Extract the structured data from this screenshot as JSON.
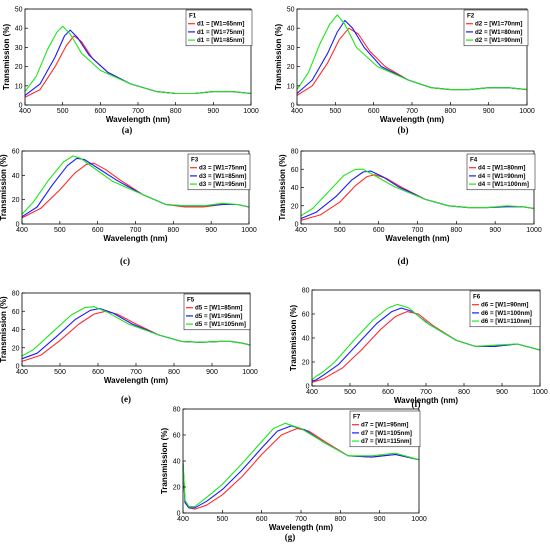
{
  "colors": {
    "red": "#ff2b2b",
    "green": "#1ee61e",
    "blue": "#1a1aff",
    "black": "#000000"
  },
  "chart_data": [
    {
      "type": "line",
      "panel": "(a)",
      "xlabel": "Wavelength (nm)",
      "ylabel": "Transmission (%)",
      "xlim": [
        400,
        1000
      ],
      "ylim": [
        0,
        50
      ],
      "xticks": [
        400,
        500,
        600,
        700,
        800,
        900,
        1000
      ],
      "yticks": [
        0,
        10,
        20,
        30,
        40,
        50
      ],
      "legend_title": "F1",
      "legend_position": "top-right",
      "series": [
        {
          "name": "d1 = [W1=65nm]",
          "color": "#ff2b2b",
          "x": [
            400,
            440,
            480,
            510,
            530,
            550,
            580,
            620,
            680,
            750,
            800,
            850,
            900,
            950,
            1000
          ],
          "y": [
            4,
            8,
            20,
            31,
            36,
            33,
            24,
            17,
            11,
            7,
            6,
            6,
            7,
            7,
            6
          ]
        },
        {
          "name": "d1 = [W1=75nm]",
          "color": "#1a1aff",
          "x": [
            400,
            440,
            480,
            505,
            520,
            540,
            570,
            620,
            680,
            750,
            800,
            850,
            900,
            950,
            1000
          ],
          "y": [
            5,
            11,
            25,
            36,
            39,
            35,
            26,
            17,
            11,
            7,
            6,
            6,
            7,
            7,
            6
          ]
        },
        {
          "name": "d1 = [W1=85nm]",
          "color": "#1ee61e",
          "x": [
            400,
            430,
            460,
            485,
            500,
            520,
            550,
            600,
            680,
            750,
            800,
            850,
            900,
            950,
            1000
          ],
          "y": [
            7,
            15,
            29,
            38,
            41,
            37,
            27,
            18,
            11,
            7,
            6,
            6,
            7,
            7,
            6
          ]
        }
      ]
    },
    {
      "type": "line",
      "panel": "(b)",
      "xlabel": "Wavelength (nm)",
      "ylabel": "Transmission (%)",
      "xlim": [
        400,
        1000
      ],
      "ylim": [
        0,
        50
      ],
      "xticks": [
        400,
        500,
        600,
        700,
        800,
        900,
        1000
      ],
      "yticks": [
        0,
        10,
        20,
        30,
        40,
        50
      ],
      "legend_title": "F2",
      "legend_position": "top-right",
      "series": [
        {
          "name": "d2 = [W1=70nm]",
          "color": "#ff2b2b",
          "x": [
            400,
            440,
            480,
            510,
            535,
            560,
            590,
            630,
            690,
            750,
            800,
            850,
            900,
            950,
            1000
          ],
          "y": [
            5,
            10,
            22,
            34,
            40,
            37,
            28,
            20,
            13,
            9,
            8,
            8,
            9,
            9,
            8
          ]
        },
        {
          "name": "d2 = [W1=80nm]",
          "color": "#1a1aff",
          "x": [
            400,
            440,
            480,
            505,
            525,
            545,
            575,
            620,
            690,
            750,
            800,
            850,
            900,
            950,
            1000
          ],
          "y": [
            6,
            13,
            27,
            38,
            44,
            40,
            30,
            20,
            13,
            9,
            8,
            8,
            9,
            9,
            8
          ]
        },
        {
          "name": "d2 = [W1=90nm]",
          "color": "#1ee61e",
          "x": [
            400,
            430,
            460,
            485,
            505,
            525,
            555,
            610,
            690,
            750,
            800,
            850,
            900,
            950,
            1000
          ],
          "y": [
            8,
            17,
            32,
            42,
            47,
            42,
            30,
            20,
            13,
            9,
            8,
            8,
            9,
            9,
            8
          ]
        }
      ]
    },
    {
      "type": "line",
      "panel": "(c)",
      "xlabel": "Wavelength (nm)",
      "ylabel": "Transmission (%)",
      "xlim": [
        400,
        1000
      ],
      "ylim": [
        0,
        60
      ],
      "xticks": [
        400,
        500,
        600,
        700,
        800,
        900,
        1000
      ],
      "yticks": [
        0,
        20,
        40,
        60
      ],
      "legend_title": "F3",
      "legend_position": "top-right",
      "series": [
        {
          "name": "d3 = [W1=75nm]",
          "color": "#ff2b2b",
          "x": [
            400,
            450,
            500,
            540,
            570,
            590,
            620,
            660,
            720,
            780,
            830,
            880,
            930,
            970,
            1000
          ],
          "y": [
            5,
            13,
            28,
            42,
            49,
            50,
            45,
            36,
            24,
            16,
            14,
            14,
            16,
            16,
            14
          ]
        },
        {
          "name": "d3 = [W1=85nm]",
          "color": "#1a1aff",
          "x": [
            400,
            440,
            480,
            520,
            545,
            565,
            600,
            650,
            720,
            780,
            830,
            880,
            930,
            970,
            1000
          ],
          "y": [
            6,
            14,
            32,
            48,
            54,
            53,
            46,
            36,
            24,
            16,
            15,
            15,
            16,
            16,
            14
          ]
        },
        {
          "name": "d3 = [W1=95nm]",
          "color": "#1ee61e",
          "x": [
            400,
            430,
            470,
            510,
            535,
            555,
            590,
            640,
            720,
            780,
            830,
            880,
            930,
            970,
            1000
          ],
          "y": [
            8,
            18,
            36,
            51,
            56,
            54,
            46,
            35,
            24,
            16,
            15,
            15,
            17,
            16,
            14
          ]
        }
      ]
    },
    {
      "type": "line",
      "panel": "(d)",
      "xlabel": "Wavelength (nm)",
      "ylabel": "Transmission (%)",
      "xlim": [
        400,
        1000
      ],
      "ylim": [
        0,
        80
      ],
      "xticks": [
        400,
        500,
        600,
        700,
        800,
        900,
        1000
      ],
      "yticks": [
        0,
        20,
        40,
        60,
        80
      ],
      "legend_title": "F4",
      "legend_position": "top-right",
      "series": [
        {
          "name": "d4 = [W1=80nm]",
          "color": "#ff2b2b",
          "x": [
            400,
            450,
            500,
            540,
            570,
            590,
            620,
            660,
            720,
            780,
            830,
            880,
            930,
            970,
            1000
          ],
          "y": [
            4,
            10,
            24,
            42,
            52,
            54,
            50,
            40,
            27,
            20,
            18,
            18,
            19,
            19,
            17
          ]
        },
        {
          "name": "d4 = [W1=90nm]",
          "color": "#1a1aff",
          "x": [
            400,
            440,
            490,
            530,
            560,
            580,
            610,
            650,
            720,
            780,
            830,
            880,
            930,
            970,
            1000
          ],
          "y": [
            6,
            13,
            30,
            48,
            57,
            58,
            52,
            41,
            27,
            20,
            18,
            18,
            19,
            19,
            17
          ]
        },
        {
          "name": "d4 = [W1=100nm]",
          "color": "#1ee61e",
          "x": [
            400,
            430,
            470,
            510,
            540,
            560,
            590,
            640,
            720,
            780,
            830,
            880,
            930,
            970,
            1000
          ],
          "y": [
            9,
            17,
            35,
            53,
            60,
            60,
            53,
            41,
            27,
            20,
            18,
            18,
            20,
            19,
            17
          ]
        }
      ]
    },
    {
      "type": "line",
      "panel": "(e)",
      "xlabel": "Wavelength (nm)",
      "ylabel": "Transmission (%)",
      "xlim": [
        400,
        1000
      ],
      "ylim": [
        0,
        80
      ],
      "xticks": [
        400,
        500,
        600,
        700,
        800,
        900,
        1000
      ],
      "yticks": [
        0,
        20,
        40,
        60,
        80
      ],
      "legend_title": "F5",
      "legend_position": "top-right",
      "series": [
        {
          "name": "d5 = [W1=85nm]",
          "color": "#ff2b2b",
          "x": [
            400,
            450,
            500,
            550,
            590,
            620,
            650,
            700,
            760,
            820,
            870,
            920,
            950,
            980,
            1000
          ],
          "y": [
            5,
            12,
            28,
            46,
            57,
            60,
            57,
            46,
            34,
            27,
            26,
            27,
            27,
            25,
            23
          ]
        },
        {
          "name": "d5 = [W1=95nm]",
          "color": "#1a1aff",
          "x": [
            400,
            440,
            490,
            540,
            580,
            605,
            640,
            690,
            760,
            820,
            870,
            920,
            950,
            980,
            1000
          ],
          "y": [
            8,
            14,
            32,
            51,
            61,
            63,
            58,
            46,
            34,
            27,
            26,
            27,
            27,
            25,
            23
          ]
        },
        {
          "name": "d5 = [W1=105nm]",
          "color": "#1ee61e",
          "x": [
            400,
            430,
            480,
            530,
            565,
            590,
            625,
            680,
            760,
            820,
            870,
            920,
            950,
            980,
            1000
          ],
          "y": [
            11,
            18,
            37,
            56,
            64,
            65,
            59,
            46,
            34,
            27,
            26,
            27,
            27,
            25,
            23
          ]
        }
      ]
    },
    {
      "type": "line",
      "panel": "(f)",
      "xlabel": "Wavelength (nm)",
      "ylabel": "Transmission (%)",
      "xlim": [
        400,
        1000
      ],
      "ylim": [
        0,
        80
      ],
      "xticks": [
        400,
        500,
        600,
        700,
        800,
        900,
        1000
      ],
      "yticks": [
        0,
        20,
        40,
        60,
        80
      ],
      "legend_title": "F6",
      "legend_position": "top-right",
      "series": [
        {
          "name": "d6 = [W1=90nm]",
          "color": "#ff2b2b",
          "x": [
            400,
            410,
            430,
            480,
            530,
            580,
            620,
            650,
            680,
            720,
            780,
            830,
            880,
            940,
            1000
          ],
          "y": [
            3,
            4,
            6,
            15,
            30,
            47,
            58,
            62,
            60,
            50,
            38,
            33,
            33,
            35,
            30
          ]
        },
        {
          "name": "d6 = [W1=100nm]",
          "color": "#1a1aff",
          "x": [
            400,
            410,
            430,
            470,
            520,
            570,
            610,
            635,
            665,
            710,
            780,
            830,
            880,
            940,
            1000
          ],
          "y": [
            4,
            5,
            9,
            18,
            35,
            52,
            62,
            65,
            62,
            51,
            38,
            33,
            33,
            35,
            30
          ]
        },
        {
          "name": "d6 = [W1=110nm]",
          "color": "#1ee61e",
          "x": [
            400,
            410,
            430,
            460,
            510,
            560,
            600,
            625,
            655,
            700,
            780,
            830,
            880,
            940,
            1000
          ],
          "y": [
            5,
            8,
            12,
            20,
            38,
            55,
            65,
            68,
            65,
            53,
            38,
            33,
            34,
            35,
            30
          ]
        }
      ]
    },
    {
      "type": "line",
      "panel": "(g)",
      "xlabel": "Wavelength (nm)",
      "ylabel": "Transmission (%)",
      "xlim": [
        400,
        1000
      ],
      "ylim": [
        0,
        80
      ],
      "xticks": [
        400,
        500,
        600,
        700,
        800,
        900,
        1000
      ],
      "yticks": [
        0,
        20,
        40,
        60,
        80
      ],
      "legend_title": "F7",
      "legend_position": "top-right",
      "series": [
        {
          "name": "d7 = [W1=95nm]",
          "color": "#ff2b2b",
          "x": [
            400,
            405,
            415,
            430,
            460,
            500,
            550,
            600,
            650,
            690,
            720,
            760,
            820,
            880,
            940,
            1000
          ],
          "y": [
            38,
            8,
            4,
            3,
            6,
            14,
            28,
            45,
            60,
            65,
            63,
            55,
            44,
            43,
            45,
            41
          ]
        },
        {
          "name": "d7 = [W1=105nm]",
          "color": "#1a1aff",
          "x": [
            400,
            405,
            415,
            430,
            460,
            500,
            550,
            600,
            640,
            675,
            710,
            760,
            820,
            880,
            940,
            1000
          ],
          "y": [
            38,
            8,
            4,
            4,
            9,
            18,
            33,
            50,
            63,
            67,
            64,
            54,
            44,
            43,
            45,
            41
          ]
        },
        {
          "name": "d7 = [W1=115nm]",
          "color": "#1ee61e",
          "x": [
            400,
            405,
            415,
            430,
            460,
            500,
            550,
            600,
            630,
            660,
            700,
            760,
            820,
            880,
            940,
            1000
          ],
          "y": [
            40,
            10,
            5,
            5,
            12,
            22,
            38,
            55,
            65,
            69,
            65,
            54,
            44,
            44,
            46,
            41
          ]
        }
      ]
    }
  ]
}
